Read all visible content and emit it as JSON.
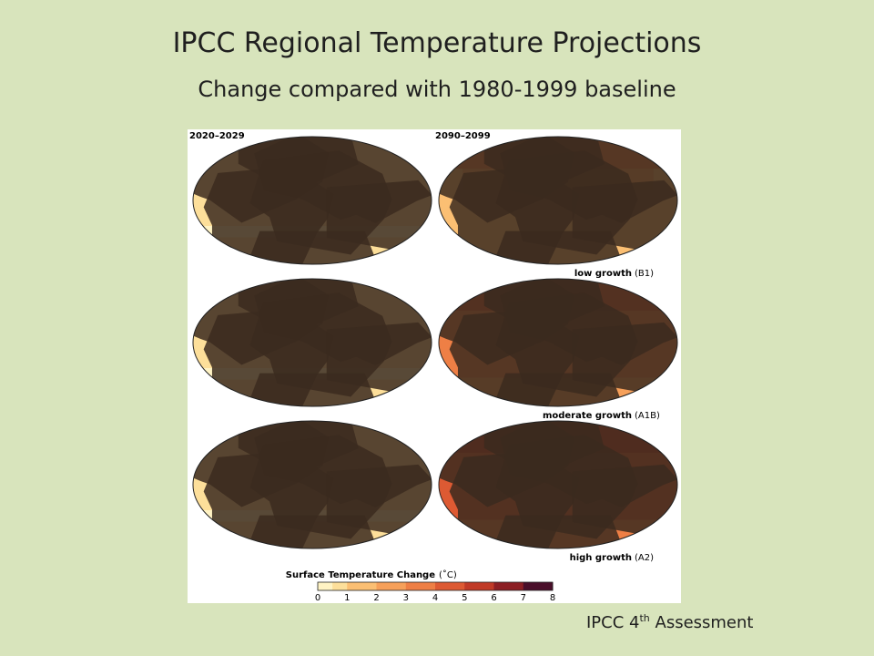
{
  "slide": {
    "title": "IPCC Regional Temperature Projections",
    "subtitle": "Change compared with 1980-1999 baseline",
    "source_prefix": "IPCC 4",
    "source_sup": "th",
    "source_suffix": " Assessment"
  },
  "figure": {
    "period_early": "2020–2029",
    "period_late": "2090–2099",
    "scenarios": [
      {
        "name": "low growth",
        "code": "(B1)",
        "level_early": 0.6,
        "level_late": 2.4
      },
      {
        "name": "moderate growth",
        "code": "(A1B)",
        "level_early": 0.7,
        "level_late": 3.6
      },
      {
        "name": "high growth",
        "code": "(A2)",
        "level_early": 0.7,
        "level_late": 4.6
      }
    ],
    "colorbar": {
      "title": "Surface Temperature Change",
      "unit": "(˚C)",
      "ticks": [
        "0",
        "1",
        "2",
        "3",
        "4",
        "5",
        "6",
        "7",
        "8"
      ],
      "colors": [
        "#fff3c4",
        "#fddf9a",
        "#fbbf73",
        "#f6a05a",
        "#ee7f45",
        "#dd5a33",
        "#c03a27",
        "#8c1f24",
        "#4a0f2a"
      ]
    }
  }
}
